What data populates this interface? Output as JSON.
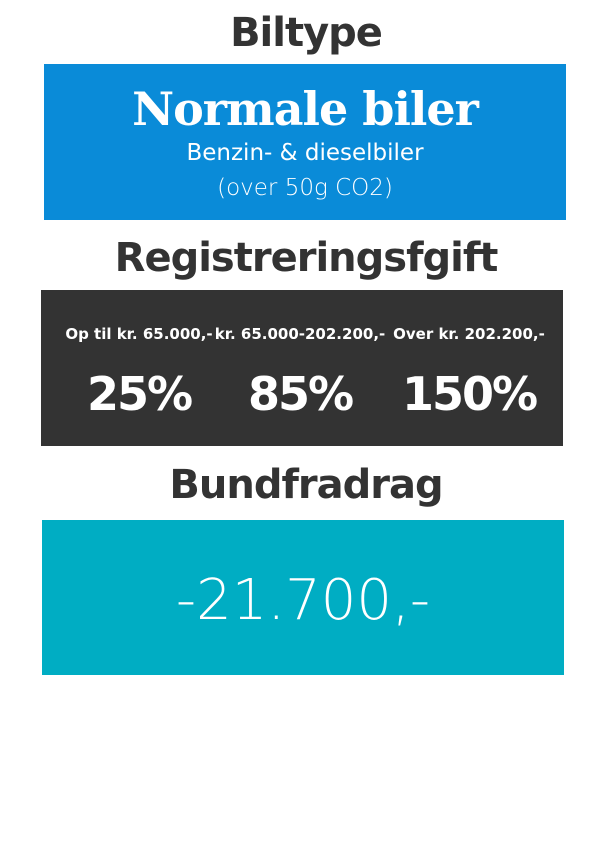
{
  "sections": {
    "car_type_heading": "Biltype",
    "registration_heading": "Registreringsfgift",
    "deduction_heading": "Bundfradrag"
  },
  "car_type": {
    "title": "Normale biler",
    "line1": "Benzin- & dieselbiler",
    "line2": "(over 50g CO2)"
  },
  "registration_fee": {
    "brackets": [
      {
        "range": "Op til kr. 65.000,-",
        "rate": "25%"
      },
      {
        "range": "kr. 65.000-202.200,-",
        "rate": "85%"
      },
      {
        "range": "Over kr. 202.200,-",
        "rate": "150%"
      }
    ]
  },
  "deduction": {
    "value": "-21.700,-"
  },
  "colors": {
    "heading": "#333333",
    "car_box": "#0a8bd8",
    "fee_box": "#333333",
    "deduction_box": "#00adc3",
    "box_text": "#ffffff"
  }
}
